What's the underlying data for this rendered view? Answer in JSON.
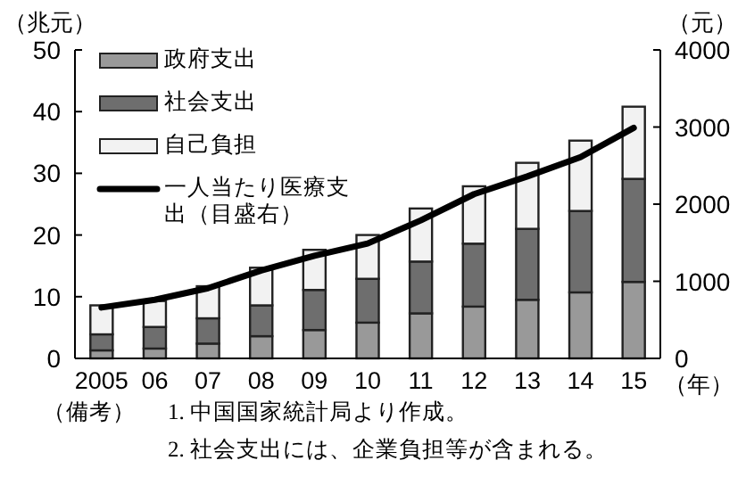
{
  "chart_data": {
    "type": "bar",
    "stacked": true,
    "ylabel": "（兆元）",
    "y2label": "（元）",
    "xlabel": "（年）",
    "categories": [
      "2005",
      "06",
      "07",
      "08",
      "09",
      "10",
      "11",
      "12",
      "13",
      "14",
      "15"
    ],
    "series": [
      {
        "name": "政府支出",
        "color": "#999999",
        "values": [
          1.3,
          1.6,
          2.4,
          3.6,
          4.6,
          5.8,
          7.3,
          8.4,
          9.5,
          10.7,
          12.4
        ]
      },
      {
        "name": "社会支出",
        "color": "#6e6e6e",
        "values": [
          2.6,
          3.5,
          4.1,
          5.0,
          6.5,
          7.1,
          8.4,
          10.2,
          11.5,
          13.2,
          16.7
        ]
      },
      {
        "name": "自己負担",
        "color": "#f2f2f2",
        "values": [
          4.7,
          4.2,
          5.2,
          6.1,
          6.5,
          7.1,
          8.6,
          9.3,
          10.7,
          11.4,
          11.7
        ]
      },
      {
        "name": "一人当たり医療支出（目盛右）",
        "type": "line",
        "axis": "y2",
        "color": "#000000",
        "values": [
          660,
          760,
          910,
          1140,
          1330,
          1490,
          1790,
          2130,
          2360,
          2610,
          2990
        ]
      }
    ],
    "ylim": [
      0,
      50
    ],
    "yticks": [
      0,
      10,
      20,
      30,
      40,
      50
    ],
    "y2lim": [
      0,
      4000
    ],
    "y2ticks": [
      0,
      1000,
      2000,
      3000,
      4000
    ],
    "grid": false,
    "legend": "top left",
    "annotations": [
      "（備考）",
      "1. 中国国家統計局より作成。",
      "2. 社会支出には、企業負担等が含まれる。"
    ]
  }
}
